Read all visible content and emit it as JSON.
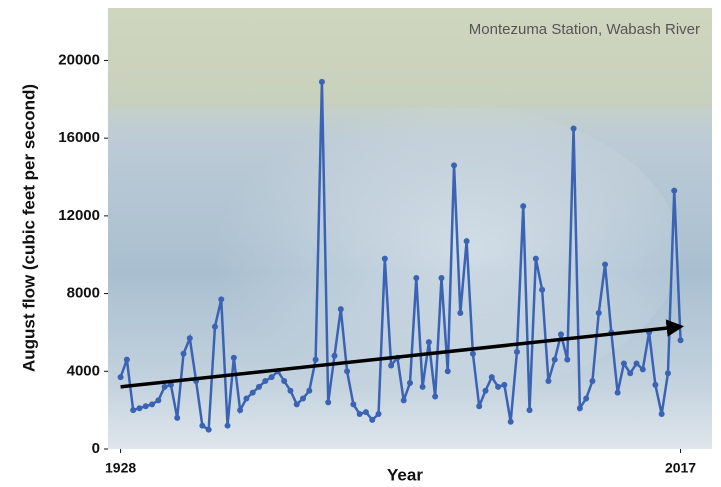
{
  "chart_data": {
    "type": "line",
    "title": "Montezuma Station, Wabash River",
    "ylabel": "August flow (cubic feet per second)",
    "xlabel": "Year",
    "x": [
      1928,
      1929,
      1930,
      1931,
      1932,
      1933,
      1934,
      1935,
      1936,
      1937,
      1938,
      1939,
      1940,
      1941,
      1942,
      1943,
      1944,
      1945,
      1946,
      1947,
      1948,
      1949,
      1950,
      1951,
      1952,
      1953,
      1954,
      1955,
      1956,
      1957,
      1958,
      1959,
      1960,
      1961,
      1962,
      1963,
      1964,
      1965,
      1966,
      1967,
      1968,
      1969,
      1970,
      1971,
      1972,
      1973,
      1974,
      1975,
      1976,
      1977,
      1978,
      1979,
      1980,
      1981,
      1982,
      1983,
      1984,
      1985,
      1986,
      1987,
      1988,
      1989,
      1990,
      1991,
      1992,
      1993,
      1994,
      1995,
      1996,
      1997,
      1998,
      1999,
      2000,
      2001,
      2002,
      2003,
      2004,
      2005,
      2006,
      2007,
      2008,
      2009,
      2010,
      2011,
      2012,
      2013,
      2014,
      2015,
      2016,
      2017
    ],
    "series": [
      {
        "color": "#3b63b3",
        "values": [
          3700,
          4600,
          2000,
          2100,
          2200,
          2300,
          2500,
          3200,
          3300,
          1600,
          4900,
          5700,
          3500,
          1200,
          1000,
          6300,
          7700,
          1200,
          4700,
          2000,
          2600,
          2900,
          3200,
          3500,
          3700,
          4000,
          3500,
          3000,
          2300,
          2600,
          3000,
          4600,
          18900,
          2400,
          4800,
          7200,
          4000,
          2300,
          1800,
          1900,
          1500,
          1800,
          9800,
          4300,
          4700,
          2500,
          3400,
          8800,
          3200,
          5500,
          2700,
          8800,
          4000,
          14600,
          7000,
          10700,
          4900,
          2200,
          3000,
          3700,
          3200,
          3300,
          1400,
          5000,
          12500,
          2000,
          9800,
          8200,
          3500,
          4600,
          5900,
          4600,
          16500,
          2100,
          2600,
          3500,
          7000,
          9500,
          6000,
          2900,
          4400,
          3900,
          4400,
          4100,
          6000,
          3300,
          1800,
          3900,
          13300,
          5600
        ]
      }
    ],
    "trend": {
      "x": [
        1928,
        2017
      ],
      "values": [
        3200,
        6300
      ],
      "color": "#000000"
    },
    "xlim": [
      1926,
      2022
    ],
    "xticks": [
      1928,
      2017
    ],
    "ylim": [
      0,
      22700
    ],
    "yticks": [
      0,
      4000,
      8000,
      12000,
      16000,
      20000
    ]
  }
}
